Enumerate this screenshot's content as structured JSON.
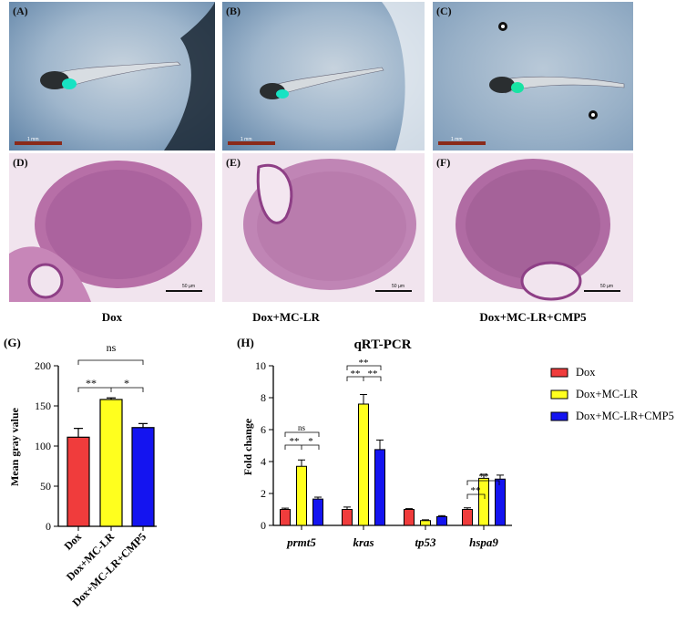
{
  "panels": {
    "A": "(A)",
    "B": "(B)",
    "C": "(C)",
    "D": "(D)",
    "E": "(E)",
    "F": "(F)",
    "scale_top": "1 mm",
    "scale_histo": "50 µm"
  },
  "captions": {
    "left": "Dox",
    "mid": "Dox+MC-LR",
    "right": "Dox+MC-LR+CMP5"
  },
  "colors": {
    "dox": "#f03c3c",
    "mclr": "#ffff1e",
    "cmp5": "#1414f0"
  },
  "chart_data": [
    {
      "panel": "(G)",
      "type": "bar",
      "ylabel": "Mean gray value",
      "ylim": [
        0,
        200
      ],
      "yticks": [
        "0",
        "50",
        "100",
        "150",
        "200"
      ],
      "categories": [
        "Dox",
        "Dox+MC-LR",
        "Dox+MC-LR+CMP5"
      ],
      "values": [
        111,
        158,
        123
      ],
      "errors": [
        11,
        2,
        5
      ],
      "annotations": [
        "ns",
        "**",
        "*"
      ]
    },
    {
      "panel": "(H)",
      "type": "bar",
      "title": "qRT-PCR",
      "ylabel": "Fold change",
      "ylim": [
        0,
        10
      ],
      "yticks": [
        "0",
        "2",
        "4",
        "6",
        "8",
        "10"
      ],
      "categories": [
        "prmt5",
        "kras",
        "tp53",
        "hspa9"
      ],
      "series": [
        {
          "name": "Dox",
          "values": [
            1.0,
            1.0,
            1.0,
            1.0
          ],
          "errors": [
            0.08,
            0.15,
            0.05,
            0.1
          ]
        },
        {
          "name": "Dox+MC-LR",
          "values": [
            3.7,
            7.6,
            0.3,
            2.95
          ],
          "errors": [
            0.4,
            0.6,
            0.05,
            0.25
          ]
        },
        {
          "name": "Dox+MC-LR+CMP5",
          "values": [
            1.65,
            4.75,
            0.55,
            2.9
          ],
          "errors": [
            0.12,
            0.6,
            0.06,
            0.25
          ]
        }
      ],
      "annotations": {
        "prmt5": [
          "ns",
          "**",
          "*"
        ],
        "kras": [
          "**",
          "**",
          "**"
        ],
        "hspa9": [
          "**",
          "**"
        ]
      }
    }
  ]
}
